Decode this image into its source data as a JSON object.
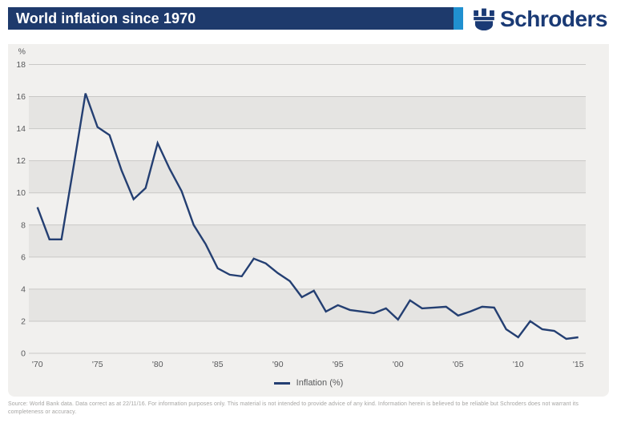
{
  "header": {
    "title": "World inflation since 1970",
    "brand": "Schroders",
    "title_bar_color": "#1e3a6c",
    "accent_color": "#2090d0",
    "brand_color": "#1a3a75"
  },
  "chart_data": {
    "type": "line",
    "title": "World inflation since 1970",
    "ylabel": "%",
    "xlabel": "",
    "ylim": [
      0,
      18
    ],
    "ytick_step": 2,
    "grid_on": true,
    "legend_label": "Inflation (%)",
    "legend_position": "bottom-center",
    "line_color": "#243f72",
    "plot_bg": "#f1f0ee",
    "band_color": "#e5e4e2",
    "grid_color": "#c9c8c6",
    "shaded_bands": [
      [
        2,
        4
      ],
      [
        6,
        8
      ],
      [
        10,
        12
      ],
      [
        14,
        16
      ]
    ],
    "xtick_years": [
      1970,
      1975,
      1980,
      1985,
      1990,
      1995,
      2000,
      2005,
      2010,
      2015
    ],
    "xtick_labels": [
      "'70",
      "'75",
      "'80",
      "'85",
      "'90",
      "'95",
      "'00",
      "'05",
      "'10",
      "'15"
    ],
    "x": [
      1970,
      1971,
      1972,
      1973,
      1974,
      1975,
      1976,
      1977,
      1978,
      1979,
      1980,
      1981,
      1982,
      1983,
      1984,
      1985,
      1986,
      1987,
      1988,
      1989,
      1990,
      1991,
      1992,
      1993,
      1994,
      1995,
      1996,
      1997,
      1998,
      1999,
      2000,
      2001,
      2002,
      2003,
      2004,
      2005,
      2006,
      2007,
      2008,
      2009,
      2010,
      2011,
      2012,
      2013,
      2014,
      2015
    ],
    "series": [
      {
        "name": "Inflation (%)",
        "values": [
          9.1,
          7.1,
          7.1,
          11.6,
          16.2,
          14.1,
          13.6,
          11.4,
          9.6,
          10.3,
          13.1,
          11.5,
          10.1,
          8.0,
          6.8,
          5.3,
          4.9,
          4.8,
          5.9,
          5.6,
          5.0,
          4.5,
          3.5,
          3.9,
          2.6,
          3.0,
          2.7,
          2.6,
          2.5,
          2.8,
          2.1,
          3.3,
          2.8,
          2.85,
          2.9,
          2.35,
          2.6,
          2.9,
          2.85,
          1.5,
          1.0,
          2.0,
          1.5,
          1.4,
          0.9,
          1.0
        ]
      }
    ]
  },
  "footer": {
    "disclaimer": "Source: World Bank data. Data correct as at 22/11/16. For information purposes only. This material is not intended to provide advice of any kind. Information herein is believed to be reliable but Schroders does not warrant its completeness or accuracy."
  }
}
